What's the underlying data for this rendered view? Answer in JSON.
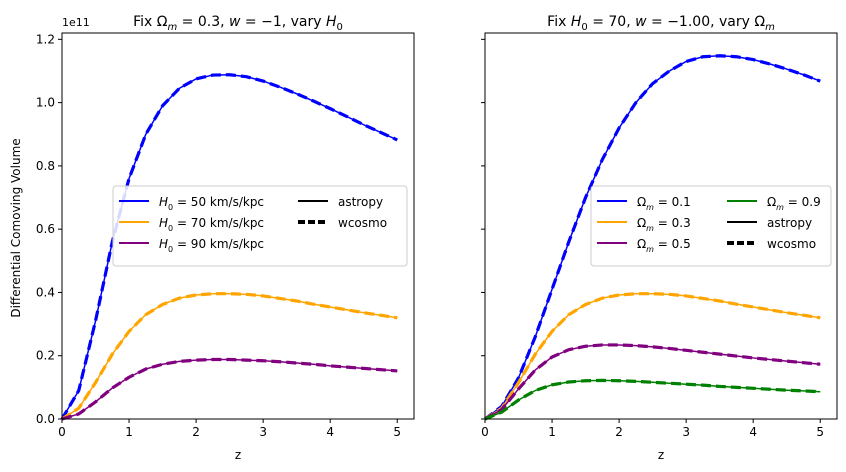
{
  "figure": {
    "ylabel": "Differential Comoving Volume",
    "y_offset_label": "1e11"
  },
  "chart_data": [
    {
      "type": "line",
      "title": "Fix Ωm = 0.3, w = −1, vary H0",
      "title_parts": [
        "Fix ",
        "Ω",
        "m",
        " = 0.3, ",
        "w",
        " = −1, vary ",
        "H",
        "0"
      ],
      "xlabel": "z",
      "ylabel": "Differential Comoving Volume",
      "xlim": [
        0,
        5.25
      ],
      "ylim": [
        0,
        1.22
      ],
      "y_scale_factor": "1e11",
      "xticks": [
        0,
        1,
        2,
        3,
        4,
        5
      ],
      "yticks": [
        0.0,
        0.2,
        0.4,
        0.6,
        0.8,
        1.0,
        1.2
      ],
      "ytick_labels": [
        "0.0",
        "0.2",
        "0.4",
        "0.6",
        "0.8",
        "1.0",
        "1.2"
      ],
      "grid": false,
      "legend_placement": "center-right",
      "legend_columns": 2,
      "series": [
        {
          "name": "H0 = 50 km/s/kpc",
          "label_parts": [
            "H",
            "0",
            " = 50 km/s/kpc"
          ],
          "color": "#0000ff",
          "x": [
            0,
            0.25,
            0.5,
            0.75,
            1.0,
            1.25,
            1.5,
            1.75,
            2.0,
            2.25,
            2.5,
            2.75,
            3.0,
            3.25,
            3.5,
            3.75,
            4.0,
            4.25,
            4.5,
            4.75,
            5.0
          ],
          "y": [
            0,
            0.09,
            0.31,
            0.56,
            0.76,
            0.9,
            0.99,
            1.045,
            1.075,
            1.087,
            1.088,
            1.082,
            1.068,
            1.049,
            1.028,
            1.005,
            0.981,
            0.956,
            0.93,
            0.906,
            0.882
          ]
        },
        {
          "name": "H0 = 70 km/s/kpc",
          "label_parts": [
            "H",
            "0",
            " = 70 km/s/kpc"
          ],
          "color": "#ffa500",
          "x": [
            0,
            0.25,
            0.5,
            0.75,
            1.0,
            1.25,
            1.5,
            1.75,
            2.0,
            2.25,
            2.5,
            2.75,
            3.0,
            3.25,
            3.5,
            3.75,
            4.0,
            4.25,
            4.5,
            4.75,
            5.0
          ],
          "y": [
            0,
            0.034,
            0.115,
            0.205,
            0.277,
            0.33,
            0.362,
            0.382,
            0.392,
            0.396,
            0.396,
            0.394,
            0.389,
            0.381,
            0.373,
            0.363,
            0.354,
            0.345,
            0.336,
            0.328,
            0.32
          ]
        },
        {
          "name": "H0 = 90 km/s/kpc",
          "label_parts": [
            "H",
            "0",
            " = 90 km/s/kpc"
          ],
          "color": "#800080",
          "x": [
            0,
            0.25,
            0.5,
            0.75,
            1.0,
            1.25,
            1.5,
            1.75,
            2.0,
            2.25,
            2.5,
            2.75,
            3.0,
            3.25,
            3.5,
            3.75,
            4.0,
            4.25,
            4.5,
            4.75,
            5.0
          ],
          "y": [
            0,
            0.016,
            0.054,
            0.098,
            0.132,
            0.158,
            0.173,
            0.182,
            0.186,
            0.188,
            0.188,
            0.186,
            0.184,
            0.181,
            0.177,
            0.173,
            0.168,
            0.164,
            0.16,
            0.156,
            0.152
          ]
        }
      ],
      "style_legend": [
        {
          "name": "astropy",
          "style": "solid"
        },
        {
          "name": "wcosmo",
          "style": "dashed"
        }
      ]
    },
    {
      "type": "line",
      "title": "Fix H0 = 70, w = −1.00, vary Ωm",
      "title_parts": [
        "Fix ",
        "H",
        "0",
        " = 70, ",
        "w",
        " = −1.00, vary ",
        "Ω",
        "m"
      ],
      "xlabel": "z",
      "xlim": [
        0,
        5.25
      ],
      "ylim": [
        0,
        1.22
      ],
      "xticks": [
        0,
        1,
        2,
        3,
        4,
        5
      ],
      "grid": false,
      "legend_placement": "center-right",
      "legend_columns": 2,
      "series": [
        {
          "name": "Ωm = 0.1",
          "label_parts": [
            "Ω",
            "m",
            " = 0.1"
          ],
          "color": "#0000ff",
          "x": [
            0,
            0.25,
            0.5,
            0.75,
            1.0,
            1.25,
            1.5,
            1.75,
            2.0,
            2.25,
            2.5,
            2.75,
            3.0,
            3.25,
            3.5,
            3.75,
            4.0,
            4.25,
            4.5,
            4.75,
            5.0
          ],
          "y": [
            0,
            0.04,
            0.13,
            0.26,
            0.41,
            0.56,
            0.7,
            0.82,
            0.92,
            1.0,
            1.06,
            1.1,
            1.13,
            1.145,
            1.148,
            1.145,
            1.136,
            1.122,
            1.106,
            1.088,
            1.068
          ]
        },
        {
          "name": "Ωm = 0.3",
          "label_parts": [
            "Ω",
            "m",
            " = 0.3"
          ],
          "color": "#ffa500",
          "x": [
            0,
            0.25,
            0.5,
            0.75,
            1.0,
            1.25,
            1.5,
            1.75,
            2.0,
            2.25,
            2.5,
            2.75,
            3.0,
            3.25,
            3.5,
            3.75,
            4.0,
            4.25,
            4.5,
            4.75,
            5.0
          ],
          "y": [
            0,
            0.034,
            0.115,
            0.205,
            0.277,
            0.33,
            0.362,
            0.382,
            0.392,
            0.396,
            0.396,
            0.394,
            0.389,
            0.381,
            0.373,
            0.363,
            0.354,
            0.345,
            0.336,
            0.328,
            0.32
          ]
        },
        {
          "name": "Ωm = 0.5",
          "label_parts": [
            "Ω",
            "m",
            " = 0.5"
          ],
          "color": "#800080",
          "x": [
            0,
            0.25,
            0.5,
            0.75,
            1.0,
            1.25,
            1.5,
            1.75,
            2.0,
            2.25,
            2.5,
            2.75,
            3.0,
            3.25,
            3.5,
            3.75,
            4.0,
            4.25,
            4.5,
            4.75,
            5.0
          ],
          "y": [
            0,
            0.03,
            0.095,
            0.155,
            0.196,
            0.219,
            0.23,
            0.234,
            0.234,
            0.232,
            0.228,
            0.223,
            0.217,
            0.211,
            0.205,
            0.199,
            0.193,
            0.188,
            0.183,
            0.178,
            0.173
          ]
        },
        {
          "name": "Ωm = 0.9",
          "label_parts": [
            "Ω",
            "m",
            " = 0.9"
          ],
          "color": "#008000",
          "x": [
            0,
            0.25,
            0.5,
            0.75,
            1.0,
            1.25,
            1.5,
            1.75,
            2.0,
            2.25,
            2.5,
            2.75,
            3.0,
            3.25,
            3.5,
            3.75,
            4.0,
            4.25,
            4.5,
            4.75,
            5.0
          ],
          "y": [
            0,
            0.022,
            0.06,
            0.09,
            0.108,
            0.117,
            0.121,
            0.122,
            0.121,
            0.119,
            0.116,
            0.113,
            0.11,
            0.107,
            0.103,
            0.1,
            0.097,
            0.094,
            0.091,
            0.089,
            0.086
          ]
        }
      ],
      "style_legend": [
        {
          "name": "astropy",
          "style": "solid"
        },
        {
          "name": "wcosmo",
          "style": "dashed"
        }
      ]
    }
  ]
}
